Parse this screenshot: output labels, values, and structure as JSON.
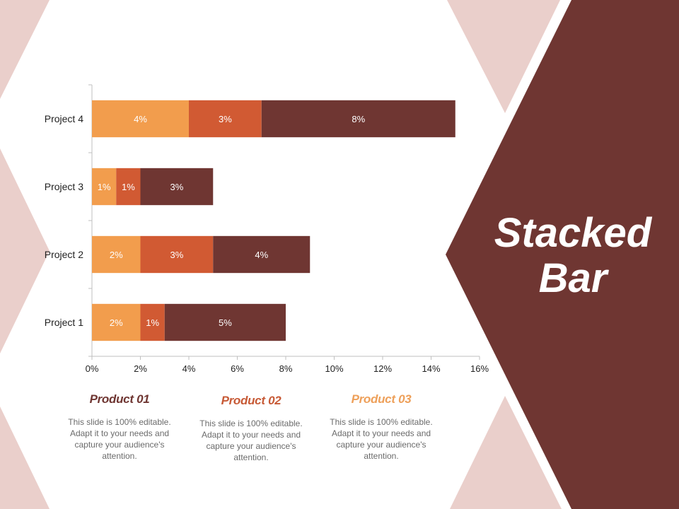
{
  "slide": {
    "title_line1": "Stacked",
    "title_line2": "Bar"
  },
  "colors": {
    "background_shape": "#6f3632",
    "triangle": "#eacfcb",
    "series1": "#f29d4d",
    "series2": "#d15a33",
    "series3": "#6f3632",
    "axis_text": "#222222",
    "product1_title": "#6f3632",
    "product2_title": "#c75a36",
    "product3_title": "#eea05a"
  },
  "chart_data": {
    "type": "bar",
    "orientation": "horizontal",
    "stacked": true,
    "categories": [
      "Project 1",
      "Project 2",
      "Project 3",
      "Project 4"
    ],
    "series": [
      {
        "values": [
          2,
          2,
          1,
          4
        ],
        "labels": [
          "2%",
          "2%",
          "1%",
          "4%"
        ]
      },
      {
        "values": [
          1,
          3,
          1,
          3
        ],
        "labels": [
          "1%",
          "3%",
          "1%",
          "3%"
        ]
      },
      {
        "values": [
          5,
          4,
          3,
          8
        ],
        "labels": [
          "5%",
          "4%",
          "3%",
          "8%"
        ]
      }
    ],
    "xlim": [
      0,
      16
    ],
    "xticks": [
      0,
      2,
      4,
      6,
      8,
      10,
      12,
      14,
      16
    ],
    "xtick_labels": [
      "0%",
      "2%",
      "4%",
      "6%",
      "8%",
      "10%",
      "12%",
      "14%",
      "16%"
    ],
    "grid": false,
    "legend": "none"
  },
  "products": [
    {
      "title": "Product 01",
      "description": "This slide is 100% editable. Adapt it to your needs and capture your audience's attention."
    },
    {
      "title": "Product 02",
      "description": "This slide is 100% editable. Adapt it to your needs and capture your audience's attention."
    },
    {
      "title": "Product 03",
      "description": "This slide is 100% editable. Adapt it to your needs and capture your audience's attention."
    }
  ]
}
